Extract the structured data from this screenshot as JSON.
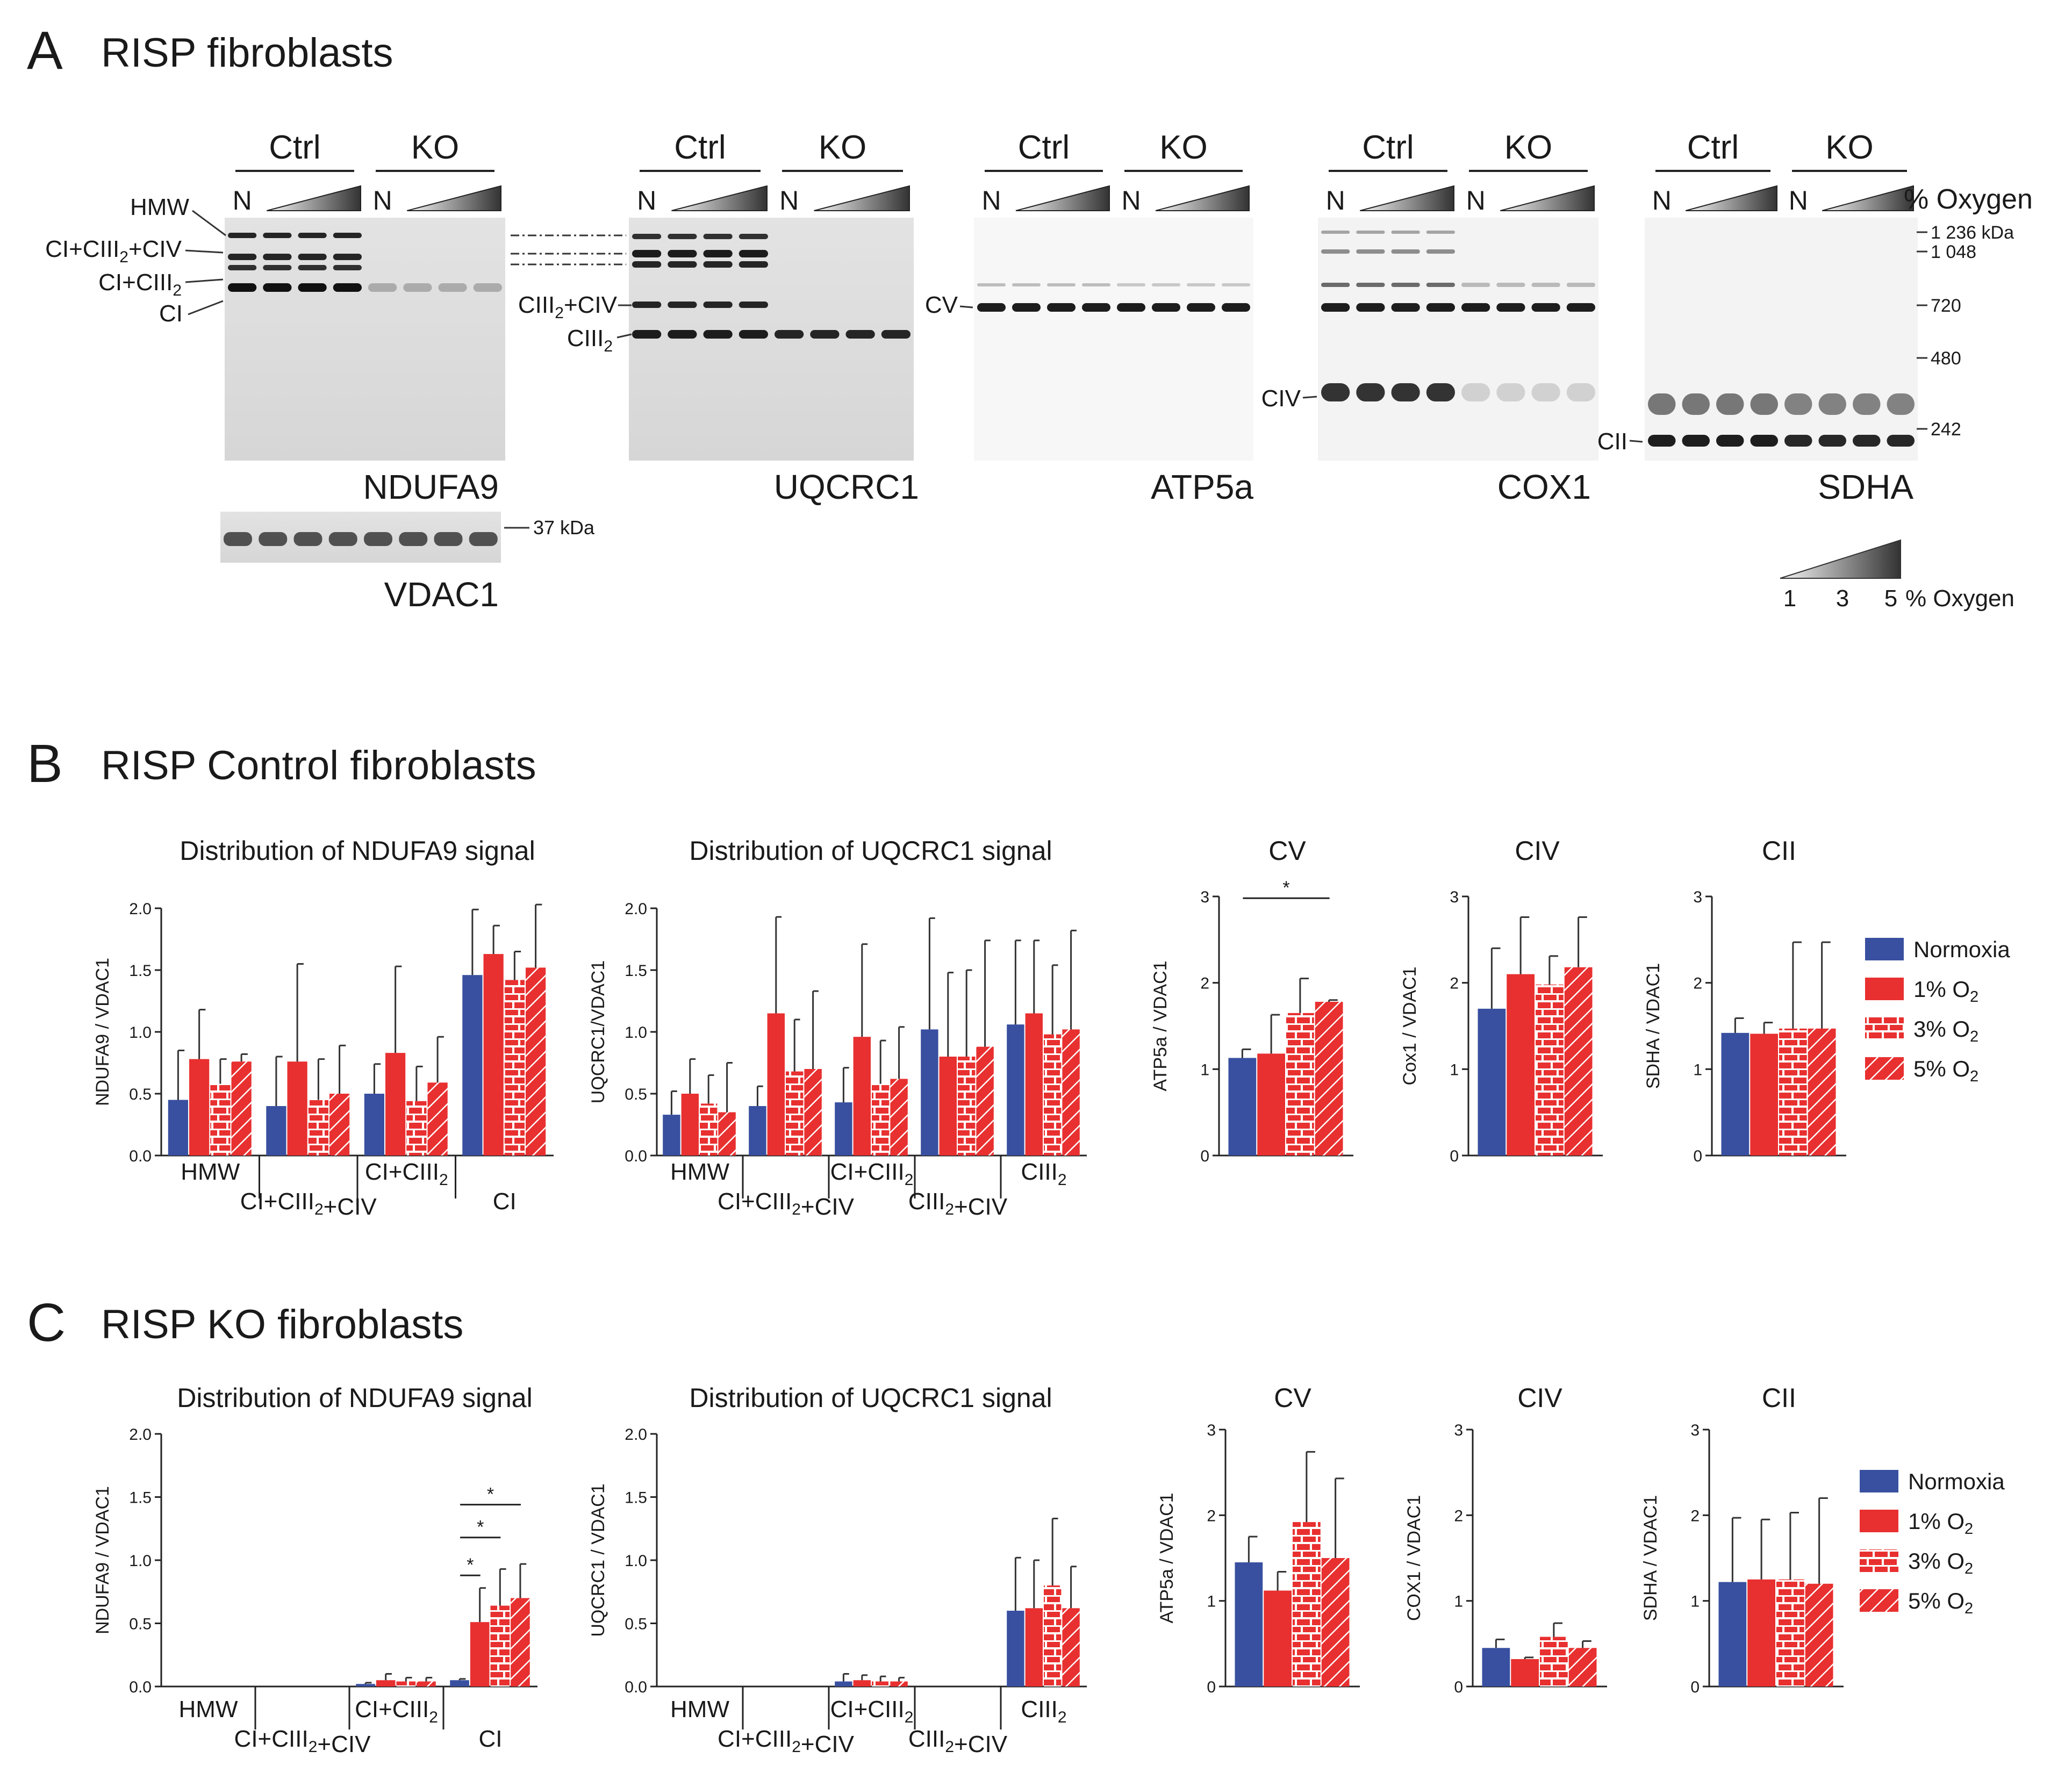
{
  "colors": {
    "normoxia": "#3950a0",
    "hypoxia": "#e83030",
    "light": "#f4a6a6",
    "text": "#1a1a1a"
  },
  "panel_a": {
    "letter": "A",
    "title": "RISP fibroblasts",
    "group_labels": [
      "Ctrl",
      "KO"
    ],
    "lane_normoxia": "N",
    "oxygen_header": "% Oxygen",
    "oxygen_scale_label": "% Oxygen",
    "oxygen_scale_ticks": [
      "1",
      "3",
      "5"
    ],
    "blots": [
      {
        "name": "NDUFA9",
        "band_labels": [
          "HMW",
          "CI+CIII2+CIV",
          "CI+CIII2",
          "CI"
        ]
      },
      {
        "name": "UQCRC1",
        "band_labels": [
          "CIII2+CIV",
          "CIII2"
        ]
      },
      {
        "name": "ATP5a",
        "band_labels": [
          "CV"
        ]
      },
      {
        "name": "COX1",
        "band_labels": [
          "CIV"
        ]
      },
      {
        "name": "SDHA",
        "band_labels": [
          "CII"
        ]
      }
    ],
    "loading_control": {
      "name": "VDAC1",
      "marker": "37 kDa"
    },
    "mw_markers": [
      "1 236 kDa",
      "1 048",
      "720",
      "480",
      "242"
    ]
  },
  "panel_b": {
    "letter": "B",
    "title": "RISP Control fibroblasts"
  },
  "panel_c": {
    "letter": "C",
    "title": "RISP KO fibroblasts"
  },
  "legend": [
    "Normoxia",
    "1% O2",
    "3% O2",
    "5% O2"
  ],
  "chart_data": [
    {
      "id": "B1",
      "type": "bar",
      "title": "Distribution of NDUFA9 signal",
      "ylabel": "NDUFA9 / VDAC1",
      "ylim": [
        0,
        2.0
      ],
      "yticks": [
        "0.0",
        "0.5",
        "1.0",
        "1.5",
        "2.0"
      ],
      "categories": [
        "HMW",
        "CI+CIII2+CIV",
        "CI+CIII2",
        "CI"
      ],
      "series": [
        {
          "name": "Normoxia",
          "values": [
            0.45,
            0.4,
            0.5,
            1.46
          ],
          "errors": [
            0.4,
            0.4,
            0.24,
            0.53
          ]
        },
        {
          "name": "1% O2",
          "values": [
            0.78,
            0.76,
            0.83,
            1.63
          ],
          "errors": [
            0.4,
            0.79,
            0.7,
            0.23
          ]
        },
        {
          "name": "3% O2",
          "values": [
            0.58,
            0.45,
            0.44,
            1.42
          ],
          "errors": [
            0.2,
            0.33,
            0.28,
            0.23
          ]
        },
        {
          "name": "5% O2",
          "values": [
            0.76,
            0.5,
            0.59,
            1.52
          ],
          "errors": [
            0.06,
            0.39,
            0.37,
            0.51
          ]
        }
      ]
    },
    {
      "id": "B2",
      "type": "bar",
      "title": "Distribution of UQCRC1 signal",
      "ylabel": "UQCRC1/VDAC1",
      "ylim": [
        0,
        2.0
      ],
      "yticks": [
        "0.0",
        "0.5",
        "1.0",
        "1.5",
        "2.0"
      ],
      "categories": [
        "HMW",
        "CI+CIII2+CIV",
        "CI+CIII2",
        "CIII2+CIV",
        "CIII2"
      ],
      "series": [
        {
          "name": "Normoxia",
          "values": [
            0.33,
            0.4,
            0.43,
            1.02,
            1.06
          ],
          "errors": [
            0.19,
            0.16,
            0.28,
            0.9,
            0.68
          ]
        },
        {
          "name": "1% O2",
          "values": [
            0.5,
            1.15,
            0.96,
            0.8,
            1.15
          ],
          "errors": [
            0.28,
            0.78,
            0.75,
            0.68,
            0.59
          ]
        },
        {
          "name": "3% O2",
          "values": [
            0.42,
            0.68,
            0.58,
            0.8,
            0.98
          ],
          "errors": [
            0.23,
            0.42,
            0.35,
            0.7,
            0.56
          ]
        },
        {
          "name": "5% O2",
          "values": [
            0.35,
            0.7,
            0.62,
            0.88,
            1.02
          ],
          "errors": [
            0.4,
            0.63,
            0.42,
            0.86,
            0.8
          ]
        }
      ]
    },
    {
      "id": "B3",
      "type": "bar",
      "title": "CV",
      "ylabel": "ATP5a / VDAC1",
      "ylim": [
        0,
        3
      ],
      "yticks": [
        "0",
        "1",
        "2",
        "3"
      ],
      "categories": [
        ""
      ],
      "series": [
        {
          "name": "Normoxia",
          "values": [
            1.13
          ],
          "errors": [
            0.1
          ]
        },
        {
          "name": "1% O2",
          "values": [
            1.18
          ],
          "errors": [
            0.45
          ]
        },
        {
          "name": "3% O2",
          "values": [
            1.65
          ],
          "errors": [
            0.4
          ]
        },
        {
          "name": "5% O2",
          "values": [
            1.78
          ],
          "errors": [
            0.02
          ]
        }
      ],
      "sig": [
        {
          "from": 0,
          "to": 3,
          "label": "*",
          "y": 2.98
        }
      ]
    },
    {
      "id": "B4",
      "type": "bar",
      "title": "CIV",
      "ylabel": "Cox1 / VDAC1",
      "ylim": [
        0,
        3
      ],
      "yticks": [
        "0",
        "1",
        "2",
        "3"
      ],
      "categories": [
        ""
      ],
      "series": [
        {
          "name": "Normoxia",
          "values": [
            1.7
          ],
          "errors": [
            0.7
          ]
        },
        {
          "name": "1% O2",
          "values": [
            2.1
          ],
          "errors": [
            0.66
          ]
        },
        {
          "name": "3% O2",
          "values": [
            1.98
          ],
          "errors": [
            0.33
          ]
        },
        {
          "name": "5% O2",
          "values": [
            2.18
          ],
          "errors": [
            0.58
          ]
        }
      ]
    },
    {
      "id": "B5",
      "type": "bar",
      "title": "CII",
      "ylabel": "SDHA / VDAC1",
      "ylim": [
        0,
        3
      ],
      "yticks": [
        "0",
        "1",
        "2",
        "3"
      ],
      "categories": [
        ""
      ],
      "series": [
        {
          "name": "Normoxia",
          "values": [
            1.42
          ],
          "errors": [
            0.17
          ]
        },
        {
          "name": "1% O2",
          "values": [
            1.41
          ],
          "errors": [
            0.13
          ]
        },
        {
          "name": "3% O2",
          "values": [
            1.47
          ],
          "errors": [
            1.0
          ]
        },
        {
          "name": "5% O2",
          "values": [
            1.47
          ],
          "errors": [
            1.0
          ]
        }
      ]
    },
    {
      "id": "C1",
      "type": "bar",
      "title": "Distribution of NDUFA9 signal",
      "ylabel": "NDUFA9 / VDAC1",
      "ylim": [
        0,
        2.0
      ],
      "yticks": [
        "0.0",
        "0.5",
        "1.0",
        "1.5",
        "2.0"
      ],
      "categories": [
        "HMW",
        "CI+CIII2+CIV",
        "CI+CIII2",
        "CI"
      ],
      "series": [
        {
          "name": "Normoxia",
          "values": [
            0,
            0,
            0.02,
            0.05
          ],
          "errors": [
            0,
            0,
            0.01,
            0.01
          ]
        },
        {
          "name": "1% O2",
          "values": [
            0,
            0,
            0.05,
            0.51
          ],
          "errors": [
            0,
            0,
            0.05,
            0.27
          ]
        },
        {
          "name": "3% O2",
          "values": [
            0,
            0,
            0.04,
            0.64
          ],
          "errors": [
            0,
            0,
            0.03,
            0.29
          ]
        },
        {
          "name": "5% O2",
          "values": [
            0,
            0,
            0.04,
            0.7
          ],
          "errors": [
            0,
            0,
            0.03,
            0.27
          ]
        }
      ],
      "sig": [
        {
          "from": 0,
          "to": 1,
          "label": "*",
          "y": 0.88
        },
        {
          "from": 0,
          "to": 2,
          "label": "*",
          "y": 1.18
        },
        {
          "from": 0,
          "to": 3,
          "label": "*",
          "y": 1.44
        }
      ],
      "sig_category": 3
    },
    {
      "id": "C2",
      "type": "bar",
      "title": "Distribution of UQCRC1 signal",
      "ylabel": "UQCRC1 / VDAC1",
      "ylim": [
        0,
        2.0
      ],
      "yticks": [
        "0.0",
        "0.5",
        "1.0",
        "1.5",
        "2.0"
      ],
      "categories": [
        "HMW",
        "CI+CIII2+CIV",
        "CI+CIII2",
        "CIII2+CIV",
        "CIII2"
      ],
      "series": [
        {
          "name": "Normoxia",
          "values": [
            0,
            0,
            0.04,
            0,
            0.6
          ],
          "errors": [
            0,
            0,
            0.06,
            0,
            0.42
          ]
        },
        {
          "name": "1% O2",
          "values": [
            0,
            0,
            0.05,
            0,
            0.62
          ],
          "errors": [
            0,
            0,
            0.04,
            0,
            0.38
          ]
        },
        {
          "name": "3% O2",
          "values": [
            0,
            0,
            0.04,
            0,
            0.8
          ],
          "errors": [
            0,
            0,
            0.04,
            0,
            0.53
          ]
        },
        {
          "name": "5% O2",
          "values": [
            0,
            0,
            0.04,
            0,
            0.62
          ],
          "errors": [
            0,
            0,
            0.03,
            0,
            0.33
          ]
        }
      ]
    },
    {
      "id": "C3",
      "type": "bar",
      "title": "CV",
      "ylabel": "ATP5a / VDAC1",
      "ylim": [
        0,
        3
      ],
      "yticks": [
        "0",
        "1",
        "2",
        "3"
      ],
      "categories": [
        ""
      ],
      "series": [
        {
          "name": "Normoxia",
          "values": [
            1.45
          ],
          "errors": [
            0.3
          ]
        },
        {
          "name": "1% O2",
          "values": [
            1.12
          ],
          "errors": [
            0.22
          ]
        },
        {
          "name": "3% O2",
          "values": [
            1.92
          ],
          "errors": [
            0.82
          ]
        },
        {
          "name": "5% O2",
          "values": [
            1.5
          ],
          "errors": [
            0.93
          ]
        }
      ]
    },
    {
      "id": "C4",
      "type": "bar",
      "title": "CIV",
      "ylabel": "COX1 / VDAC1",
      "ylim": [
        0,
        3
      ],
      "yticks": [
        "0",
        "1",
        "2",
        "3"
      ],
      "categories": [
        ""
      ],
      "series": [
        {
          "name": "Normoxia",
          "values": [
            0.45
          ],
          "errors": [
            0.1
          ]
        },
        {
          "name": "1% O2",
          "values": [
            0.32
          ],
          "errors": [
            0.02
          ]
        },
        {
          "name": "3% O2",
          "values": [
            0.58
          ],
          "errors": [
            0.16
          ]
        },
        {
          "name": "5% O2",
          "values": [
            0.45
          ],
          "errors": [
            0.08
          ]
        }
      ]
    },
    {
      "id": "C5",
      "type": "bar",
      "title": "CII",
      "ylabel": "SDHA / VDAC1",
      "ylim": [
        0,
        3
      ],
      "yticks": [
        "0",
        "1",
        "2",
        "3"
      ],
      "categories": [
        ""
      ],
      "series": [
        {
          "name": "Normoxia",
          "values": [
            1.22
          ],
          "errors": [
            0.75
          ]
        },
        {
          "name": "1% O2",
          "values": [
            1.25
          ],
          "errors": [
            0.7
          ]
        },
        {
          "name": "3% O2",
          "values": [
            1.25
          ],
          "errors": [
            0.78
          ]
        },
        {
          "name": "5% O2",
          "values": [
            1.2
          ],
          "errors": [
            1.0
          ]
        }
      ]
    }
  ]
}
